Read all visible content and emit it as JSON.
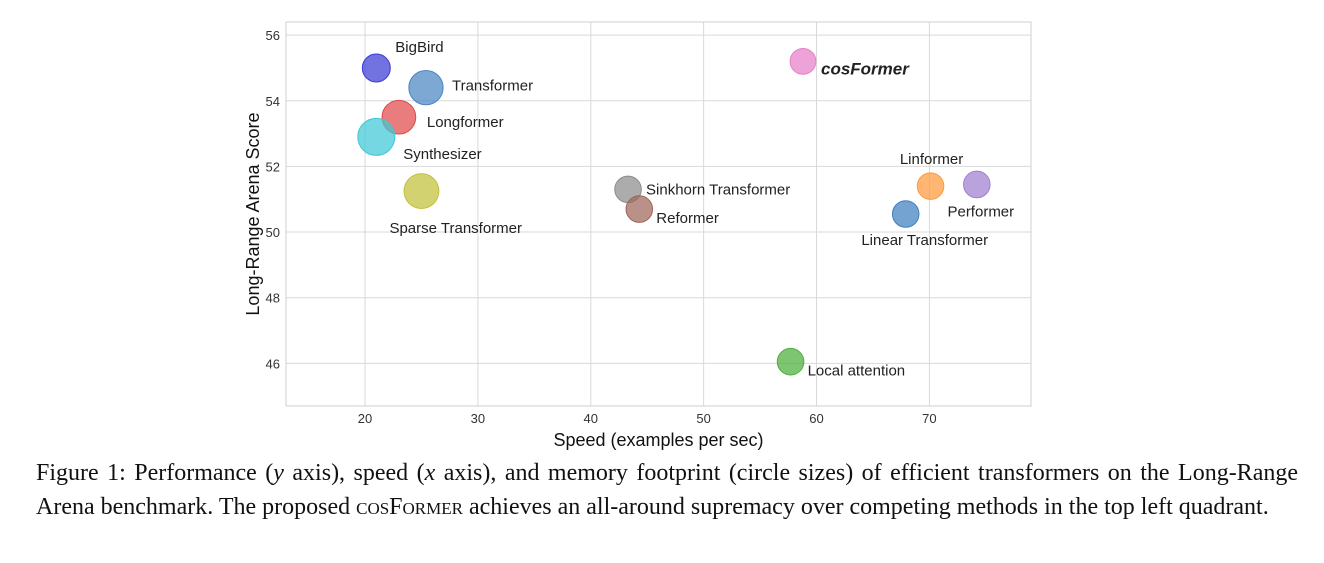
{
  "chart_data": {
    "type": "scatter",
    "xlabel": "Speed (examples per sec)",
    "ylabel": "Long-Range Arena Score",
    "xlim": [
      13,
      79
    ],
    "ylim": [
      44.7,
      56.4
    ],
    "xticks": [
      20,
      30,
      40,
      50,
      60,
      70
    ],
    "yticks": [
      46,
      48,
      50,
      52,
      54,
      56
    ],
    "grid": true,
    "highlight_color": "#c0392b",
    "points": [
      {
        "label": "BigBird",
        "x": 21.0,
        "y": 55.0,
        "size": 1.0,
        "color": "#3b3bd6"
      },
      {
        "label": "Transformer",
        "x": 25.4,
        "y": 54.4,
        "size": 1.5,
        "color": "#4a86c2"
      },
      {
        "label": "Longformer",
        "x": 23.0,
        "y": 53.5,
        "size": 1.45,
        "color": "#e04a4a"
      },
      {
        "label": "Synthesizer",
        "x": 21.0,
        "y": 52.9,
        "size": 1.75,
        "color": "#3fc8d6"
      },
      {
        "label": "Sparse Transformer",
        "x": 25.0,
        "y": 51.25,
        "size": 1.55,
        "color": "#c2c03a"
      },
      {
        "label": "Sinkhorn Transformer",
        "x": 43.3,
        "y": 51.3,
        "size": 0.9,
        "color": "#8c8c8c"
      },
      {
        "label": "Reformer",
        "x": 44.3,
        "y": 50.7,
        "size": 0.9,
        "color": "#a0665a"
      },
      {
        "label": "cosFormer",
        "x": 58.8,
        "y": 55.2,
        "size": 0.85,
        "color": "#e680c8",
        "highlight": true
      },
      {
        "label": "Linformer",
        "x": 70.1,
        "y": 51.4,
        "size": 0.9,
        "color": "#ff9a3c"
      },
      {
        "label": "Performer",
        "x": 74.2,
        "y": 51.45,
        "size": 0.9,
        "color": "#a07ed0"
      },
      {
        "label": "Linear Transformer",
        "x": 67.9,
        "y": 50.55,
        "size": 0.9,
        "color": "#3f7fc0"
      },
      {
        "label": "Local attention",
        "x": 57.7,
        "y": 46.05,
        "size": 0.9,
        "color": "#4caf3c"
      }
    ]
  },
  "caption": {
    "prefix": "Figure 1: Performance (",
    "y_var": "y",
    "mid1": " axis), speed (",
    "x_var": "x",
    "mid2": " axis), and memory footprint (circle sizes) of efficient transformers on the Long-Range Arena benchmark.  The proposed ",
    "model": "cosFormer",
    "suffix": " achieves an all-around supremacy over competing methods in the top left quadrant."
  }
}
